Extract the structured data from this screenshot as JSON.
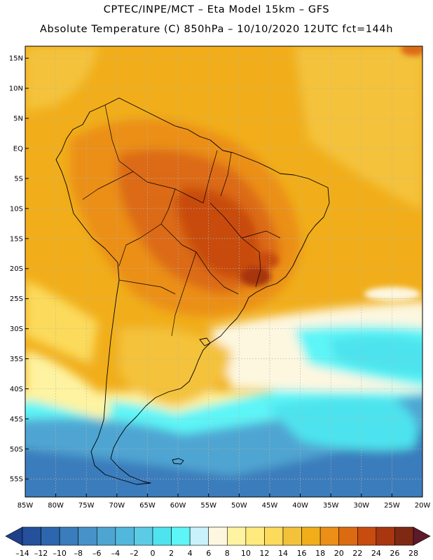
{
  "header": {
    "line1": "CPTEC/INPE/MCT –  Eta Model 15km – GFS",
    "line2": "Absolute Temperature (C) 850hPa – 10/10/2020 12UTC fct=144h"
  },
  "map": {
    "region": "South America",
    "lon_range": [
      -85,
      -20
    ],
    "lat_range": [
      -58,
      17
    ],
    "lat_labels": [
      "15N",
      "10N",
      "5N",
      "EQ",
      "5S",
      "10S",
      "15S",
      "20S",
      "25S",
      "30S",
      "35S",
      "40S",
      "45S",
      "50S",
      "55S"
    ],
    "lat_values": [
      15,
      10,
      5,
      0,
      -5,
      -10,
      -15,
      -20,
      -25,
      -30,
      -35,
      -40,
      -45,
      -50,
      -55
    ],
    "lon_labels": [
      "85W",
      "80W",
      "75W",
      "70W",
      "65W",
      "60W",
      "55W",
      "50W",
      "45W",
      "40W",
      "35W",
      "30W",
      "25W",
      "20W"
    ],
    "lon_values": [
      -85,
      -80,
      -75,
      -70,
      -65,
      -60,
      -55,
      -50,
      -45,
      -40,
      -35,
      -30,
      -25,
      -20
    ]
  },
  "colorbar": {
    "labels": [
      "-14",
      "-12",
      "-10",
      "-8",
      "-6",
      "-4",
      "-2",
      "0",
      "2",
      "4",
      "6",
      "8",
      "10",
      "12",
      "14",
      "16",
      "18",
      "20",
      "22",
      "24",
      "26",
      "28"
    ],
    "colors": [
      "#1e3f8a",
      "#24509c",
      "#2d66ad",
      "#3a7cbc",
      "#4792c8",
      "#4fa5d2",
      "#52b7dc",
      "#5ccbe6",
      "#4ee3ee",
      "#5df5f7",
      "#c8f1fb",
      "#fdf7e0",
      "#fef3a0",
      "#feea7d",
      "#fcda5b",
      "#f4c23a",
      "#f1ae1a",
      "#eb8f16",
      "#dc6a12",
      "#c84b10",
      "#a73611",
      "#7f2914",
      "#5c1a2b"
    ]
  }
}
